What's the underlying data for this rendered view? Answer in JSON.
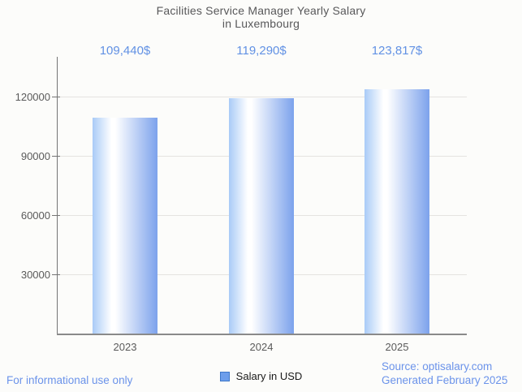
{
  "title": {
    "line1": "Facilities Service Manager Yearly Salary",
    "line2": "in Luxembourg"
  },
  "legend": {
    "label": "Salary in USD"
  },
  "footer": {
    "left": "For informational use only",
    "source": "Source: optisalary.com",
    "generated": "Generated February 2025"
  },
  "colors": {
    "annotation": "#6191e4",
    "footer": "#6b93ea",
    "bar_left": "#a9cbf7",
    "bar_highlight": "#ffffff",
    "bar_right": "#7ca2ec",
    "legend_fill": "#6d9eeb",
    "legend_border": "#3d77c9",
    "title_text": "#58585a",
    "axis_text": "#5a5a5a",
    "gridline": "#e5e3e0"
  },
  "chart_data": {
    "type": "bar",
    "title": "Facilities Service Manager Yearly Salary in Luxembourg",
    "categories": [
      "2023",
      "2024",
      "2025"
    ],
    "series": [
      {
        "name": "Salary in USD",
        "values": [
          109440,
          119290,
          123817
        ]
      }
    ],
    "annotations": [
      "109,440$",
      "119,290$",
      "123,817$"
    ],
    "xlabel": "",
    "ylabel": "",
    "y_ticks": [
      30000,
      60000,
      90000,
      120000
    ],
    "ylim": [
      0,
      140000
    ],
    "grid": true,
    "legend_position": "bottom"
  }
}
